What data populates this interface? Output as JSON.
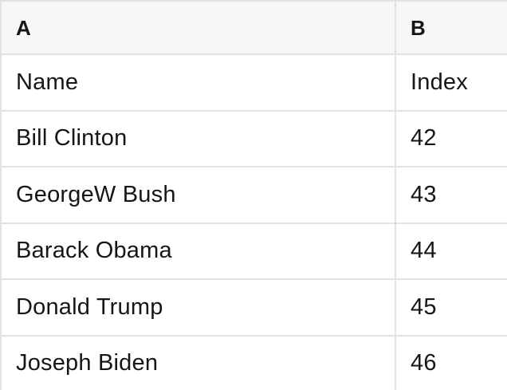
{
  "colors": {
    "header_bg": "#f7f7f7",
    "row_bg": "#ffffff",
    "border": "#e2e2e2",
    "text": "#161616"
  },
  "table": {
    "columns": [
      {
        "key": "A",
        "label": "A"
      },
      {
        "key": "B",
        "label": "B"
      }
    ],
    "rows": [
      [
        "Name",
        "Index"
      ],
      [
        "Bill Clinton",
        "42"
      ],
      [
        "GeorgeW Bush",
        "43"
      ],
      [
        "Barack Obama",
        "44"
      ],
      [
        "Donald Trump",
        "45"
      ],
      [
        "Joseph Biden",
        "46"
      ]
    ]
  }
}
